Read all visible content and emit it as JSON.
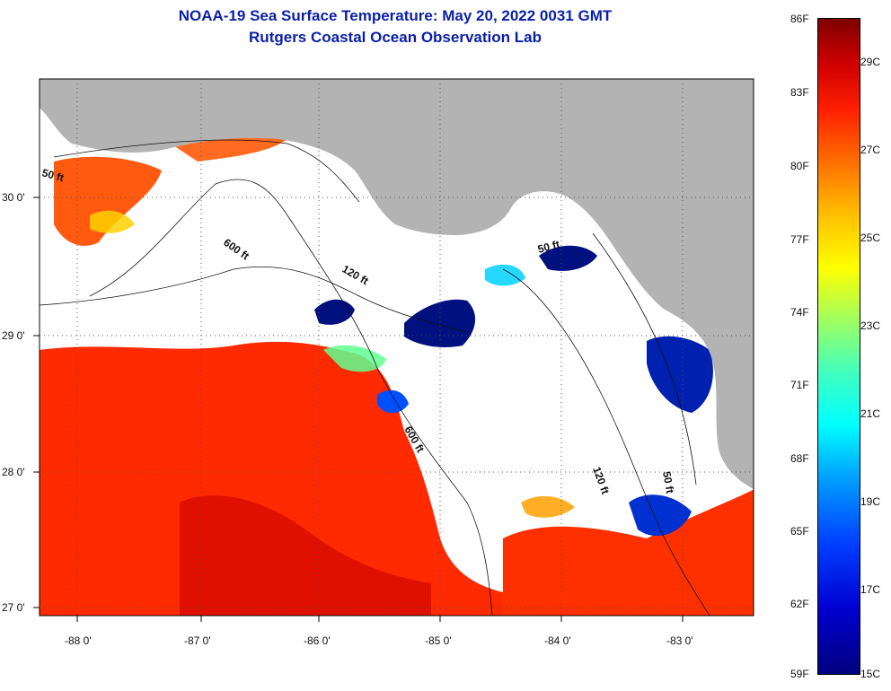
{
  "header": {
    "title": "NOAA-19 Sea Surface Temperature:  May 20, 2022 0031 GMT",
    "subtitle": "Rutgers Coastal Ocean Observation Lab"
  },
  "axes": {
    "x_ticks": [
      "-88 0'",
      "-87 0'",
      "-86 0'",
      "-85 0'",
      "-84 0'",
      "-83 0'"
    ],
    "y_ticks": [
      "30 0'",
      "29 0'",
      "28 0'",
      "27 0'"
    ]
  },
  "contours": {
    "c50a": "50 ft",
    "c600a": "600 ft",
    "c120a": "120 ft",
    "c50b": "50 ft",
    "c600b": "600 ft",
    "c120b": "120 ft",
    "c50c": "50 ft"
  },
  "colorbar": {
    "fahrenheit": [
      "86F",
      "83F",
      "80F",
      "77F",
      "74F",
      "71F",
      "68F",
      "65F",
      "62F",
      "59F"
    ],
    "celsius": [
      "29C",
      "27C",
      "25C",
      "23C",
      "21C",
      "19C",
      "17C",
      "15C"
    ]
  },
  "colors": {
    "land": "#b3b3b3",
    "cloud": "#ffffff",
    "warm": "#ff2a00",
    "hot": "#e01000",
    "cold": "#00107f",
    "title": "#0a1fa8"
  }
}
